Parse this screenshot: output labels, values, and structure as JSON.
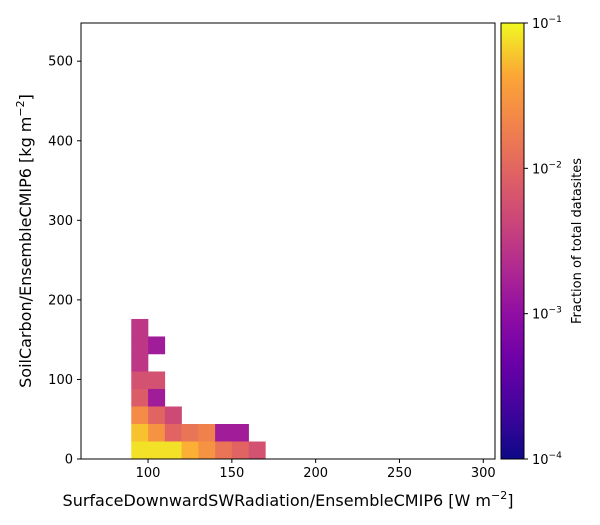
{
  "chart_data": {
    "type": "heatmap",
    "title": "",
    "xlabel": "SurfaceDownwardSWRadiation/EnsembleCMIP6 [W m",
    "xlabel_sup": "−2",
    "xlabel_end": "]",
    "ylabel": "SoilCarbon/EnsembleCMIP6 [kg m",
    "ylabel_sup": "−2",
    "ylabel_end": "]",
    "xlim": [
      60,
      307
    ],
    "ylim": [
      0,
      548
    ],
    "xticks": [
      100,
      150,
      200,
      250,
      300
    ],
    "yticks": [
      0,
      100,
      200,
      300,
      400,
      500
    ],
    "bin_width_x": 10,
    "bin_height_y": 22,
    "colorbar": {
      "label": "Fraction of total datasites",
      "scale": "log",
      "colormap": "plasma",
      "range": [
        0.0001,
        0.1
      ],
      "ticks": [
        {
          "value": 0.1,
          "base": "10",
          "exp": "−1"
        },
        {
          "value": 0.01,
          "base": "10",
          "exp": "−2"
        },
        {
          "value": 0.001,
          "base": "10",
          "exp": "−3"
        },
        {
          "value": 0.0001,
          "base": "10",
          "exp": "−4"
        }
      ]
    },
    "cells": [
      {
        "x": 90,
        "y": 154,
        "value": 0.003
      },
      {
        "x": 90,
        "y": 132,
        "value": 0.003
      },
      {
        "x": 90,
        "y": 110,
        "value": 0.003
      },
      {
        "x": 90,
        "y": 88,
        "value": 0.006
      },
      {
        "x": 90,
        "y": 66,
        "value": 0.008
      },
      {
        "x": 90,
        "y": 44,
        "value": 0.025
      },
      {
        "x": 90,
        "y": 22,
        "value": 0.06
      },
      {
        "x": 90,
        "y": 0,
        "value": 0.08
      },
      {
        "x": 100,
        "y": 132,
        "value": 0.0015
      },
      {
        "x": 100,
        "y": 88,
        "value": 0.006
      },
      {
        "x": 100,
        "y": 66,
        "value": 0.0015
      },
      {
        "x": 100,
        "y": 44,
        "value": 0.01
      },
      {
        "x": 100,
        "y": 22,
        "value": 0.03
      },
      {
        "x": 100,
        "y": 0,
        "value": 0.08
      },
      {
        "x": 110,
        "y": 44,
        "value": 0.005
      },
      {
        "x": 110,
        "y": 22,
        "value": 0.01
      },
      {
        "x": 110,
        "y": 0,
        "value": 0.08
      },
      {
        "x": 120,
        "y": 22,
        "value": 0.015
      },
      {
        "x": 120,
        "y": 0,
        "value": 0.05
      },
      {
        "x": 130,
        "y": 22,
        "value": 0.02
      },
      {
        "x": 130,
        "y": 0,
        "value": 0.03
      },
      {
        "x": 140,
        "y": 22,
        "value": 0.0015
      },
      {
        "x": 140,
        "y": 0,
        "value": 0.015
      },
      {
        "x": 150,
        "y": 22,
        "value": 0.0015
      },
      {
        "x": 150,
        "y": 0,
        "value": 0.01
      },
      {
        "x": 160,
        "y": 0,
        "value": 0.006
      }
    ]
  }
}
